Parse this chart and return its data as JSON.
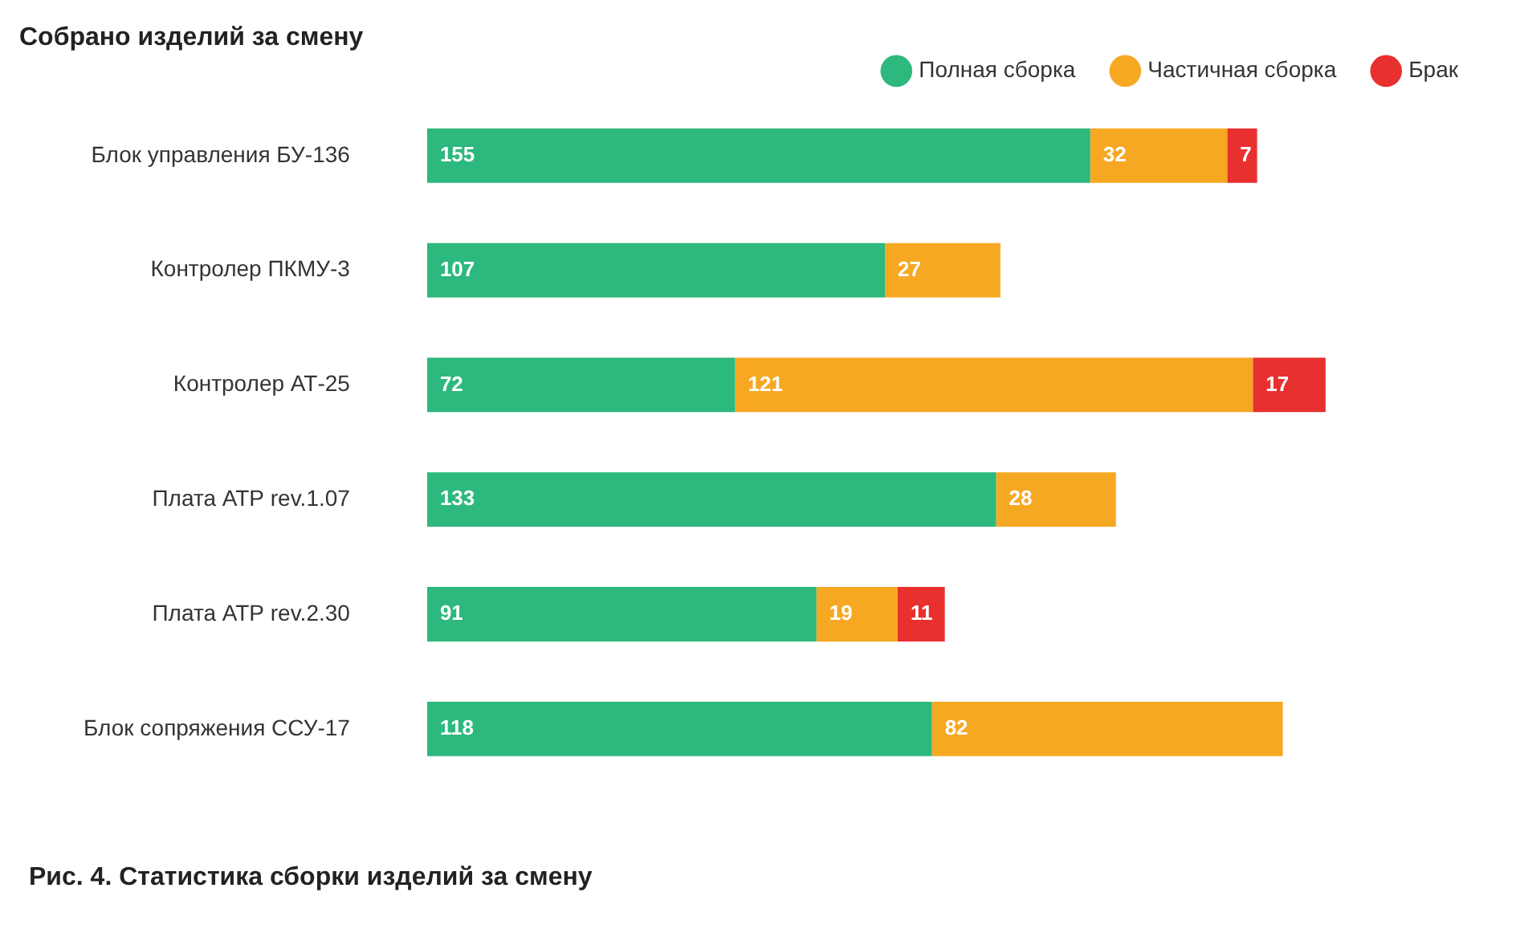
{
  "chart_data": {
    "type": "bar",
    "orientation": "horizontal",
    "stacked": true,
    "title": "Собрано изделий за смену",
    "categories": [
      "Блок управления БУ-136",
      "Контролер ПКМУ-3",
      "Контролер АТ-25",
      "Плата АТР rev.1.07",
      "Плата АТР rev.2.30",
      "Блок сопряжения ССУ-17"
    ],
    "series": [
      {
        "name": "Полная сборка",
        "color": "#2db87d",
        "values": [
          155,
          107,
          72,
          133,
          91,
          118
        ]
      },
      {
        "name": "Частичная сборка",
        "color": "#f7a823",
        "values": [
          32,
          27,
          121,
          28,
          19,
          82
        ]
      },
      {
        "name": "Брак",
        "color": "#e8302f",
        "values": [
          7,
          null,
          17,
          null,
          11,
          null
        ]
      }
    ],
    "data_labels": true,
    "legend": "top right",
    "grid": false,
    "tick_labels": "y",
    "annotations": [
      "Рис. 4. Статистика сборки изделий за смену"
    ]
  }
}
